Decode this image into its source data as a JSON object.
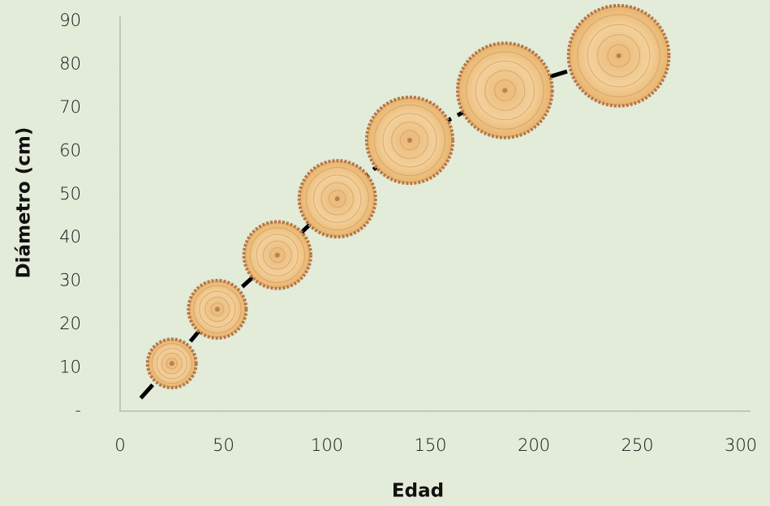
{
  "chart_data": {
    "type": "line",
    "xlabel": "Edad",
    "ylabel": "Diámetro (cm)",
    "series": [
      {
        "x": [
          10,
          25,
          47,
          76,
          105,
          140,
          186,
          241
        ],
        "values": [
          3,
          11,
          23.5,
          36,
          49,
          62.5,
          74,
          82
        ],
        "color": "#000000"
      }
    ],
    "markers": {
      "x": [
        25,
        47,
        76,
        105,
        140,
        186,
        241
      ],
      "values": [
        11,
        23.5,
        36,
        49,
        62.5,
        74,
        82
      ]
    },
    "xlim": [
      0,
      300
    ],
    "xticks": [
      0,
      50,
      100,
      150,
      200,
      250,
      300
    ],
    "ylim": [
      0,
      90
    ],
    "yticks": [
      {
        "value": 0,
        "label": "-"
      },
      10,
      20,
      30,
      40,
      50,
      60,
      70,
      80,
      90
    ],
    "grid": false
  }
}
